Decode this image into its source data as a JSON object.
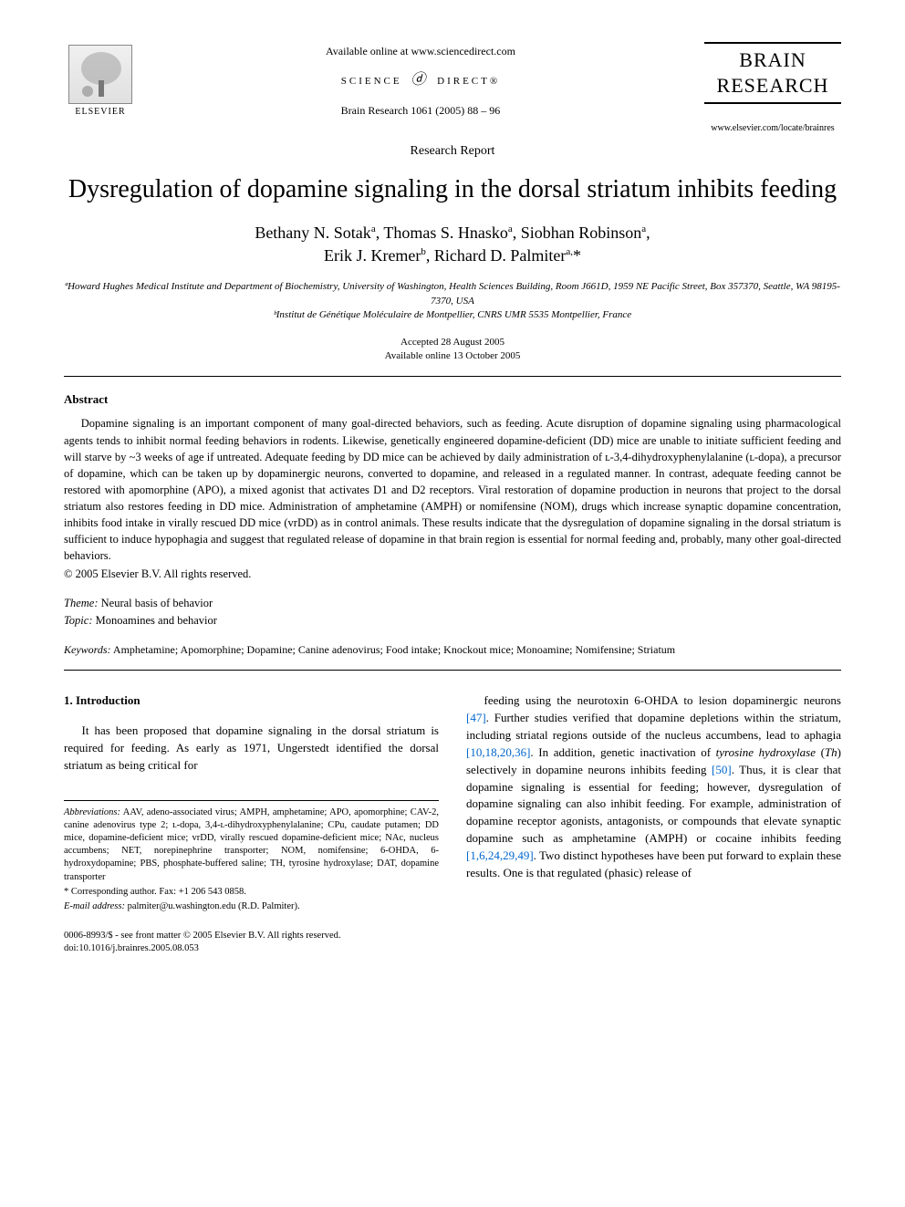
{
  "header": {
    "available_text": "Available online at www.sciencedirect.com",
    "sd_text_left": "SCIENCE",
    "sd_text_right": "DIRECT®",
    "citation": "Brain Research 1061 (2005) 88 – 96",
    "elsevier_label": "ELSEVIER",
    "journal_name_line1": "BRAIN",
    "journal_name_line2": "RESEARCH",
    "journal_url": "www.elsevier.com/locate/brainres"
  },
  "article": {
    "type": "Research Report",
    "title": "Dysregulation of dopamine signaling in the dorsal striatum inhibits feeding",
    "authors_html": "Bethany N. Sotak<sup>a</sup>, Thomas S. Hnasko<sup>a</sup>, Siobhan Robinson<sup>a</sup>,<br>Erik J. Kremer<sup>b</sup>, Richard D. Palmiter<sup>a,</sup>*",
    "affiliations": [
      "ªHoward Hughes Medical Institute and Department of Biochemistry, University of Washington, Health Sciences Building, Room J661D, 1959 NE Pacific Street, Box 357370, Seattle, WA 98195-7370, USA",
      "ᵇInstitut de Génétique Moléculaire de Montpellier, CNRS UMR 5535 Montpellier, France"
    ],
    "accepted": "Accepted 28 August 2005",
    "available": "Available online 13 October 2005"
  },
  "abstract": {
    "heading": "Abstract",
    "text": "Dopamine signaling is an important component of many goal-directed behaviors, such as feeding. Acute disruption of dopamine signaling using pharmacological agents tends to inhibit normal feeding behaviors in rodents. Likewise, genetically engineered dopamine-deficient (DD) mice are unable to initiate sufficient feeding and will starve by ~3 weeks of age if untreated. Adequate feeding by DD mice can be achieved by daily administration of ʟ-3,4-dihydroxyphenylalanine (ʟ-dopa), a precursor of dopamine, which can be taken up by dopaminergic neurons, converted to dopamine, and released in a regulated manner. In contrast, adequate feeding cannot be restored with apomorphine (APO), a mixed agonist that activates D1 and D2 receptors. Viral restoration of dopamine production in neurons that project to the dorsal striatum also restores feeding in DD mice. Administration of amphetamine (AMPH) or nomifensine (NOM), drugs which increase synaptic dopamine concentration, inhibits food intake in virally rescued DD mice (vrDD) as in control animals. These results indicate that the dysregulation of dopamine signaling in the dorsal striatum is sufficient to induce hypophagia and suggest that regulated release of dopamine in that brain region is essential for normal feeding and, probably, many other goal-directed behaviors.",
    "copyright": "© 2005 Elsevier B.V. All rights reserved."
  },
  "meta": {
    "theme_label": "Theme:",
    "theme_value": "Neural basis of behavior",
    "topic_label": "Topic:",
    "topic_value": "Monoamines and behavior",
    "keywords_label": "Keywords:",
    "keywords_value": "Amphetamine; Apomorphine; Dopamine; Canine adenovirus; Food intake; Knockout mice; Monoamine; Nomifensine; Striatum"
  },
  "intro": {
    "heading": "1. Introduction",
    "col1_text": "It has been proposed that dopamine signaling in the dorsal striatum is required for feeding. As early as 1971, Ungerstedt identified the dorsal striatum as being critical for",
    "col2_text_pre": "feeding using the neurotoxin 6-OHDA to lesion dopaminergic neurons ",
    "ref1": "[47]",
    "col2_text_mid1": ". Further studies verified that dopamine depletions within the striatum, including striatal regions outside of the nucleus accumbens, lead to aphagia ",
    "ref2": "[10,18,20,36]",
    "col2_text_mid2": ". In addition, genetic inactivation of ",
    "ital1": "tyrosine hydroxylase",
    "col2_text_mid3": " (",
    "ital2": "Th",
    "col2_text_mid4": ") selectively in dopamine neurons inhibits feeding ",
    "ref3": "[50]",
    "col2_text_mid5": ". Thus, it is clear that dopamine signaling is essential for feeding; however, dysregulation of dopamine signaling can also inhibit feeding. For example, administration of dopamine receptor agonists, antagonists, or compounds that elevate synaptic dopamine such as amphetamine (AMPH) or cocaine inhibits feeding ",
    "ref4": "[1,6,24,29,49]",
    "col2_text_end": ". Two distinct hypotheses have been put forward to explain these results. One is that regulated (phasic) release of"
  },
  "footnotes": {
    "abbrev_label": "Abbreviations:",
    "abbrev_text": " AAV, adeno-associated virus; AMPH, amphetamine; APO, apomorphine; CAV-2, canine adenovirus type 2; ʟ-dopa, 3,4-ʟ-dihydroxyphenylalanine; CPu, caudate putamen; DD mice, dopamine-deficient mice; vrDD, virally rescued dopamine-deficient mice; NAc, nucleus accumbens; NET, norepinephrine transporter; NOM, nomifensine; 6-OHDA, 6-hydroxydopamine; PBS, phosphate-buffered saline; TH, tyrosine hydroxylase; DAT, dopamine transporter",
    "corr": "* Corresponding author. Fax: +1 206 543 0858.",
    "email_label": "E-mail address:",
    "email_value": " palmiter@u.washington.edu (R.D. Palmiter)."
  },
  "footer": {
    "line1": "0006-8993/$ - see front matter © 2005 Elsevier B.V. All rights reserved.",
    "line2": "doi:10.1016/j.brainres.2005.08.053"
  },
  "colors": {
    "text": "#000000",
    "background": "#ffffff",
    "link": "#0066cc",
    "rule": "#000000"
  },
  "fonts": {
    "body_family": "Georgia, Times New Roman, serif",
    "title_size_pt": 21,
    "body_size_pt": 10,
    "abstract_size_pt": 9.5,
    "footnote_size_pt": 8
  }
}
